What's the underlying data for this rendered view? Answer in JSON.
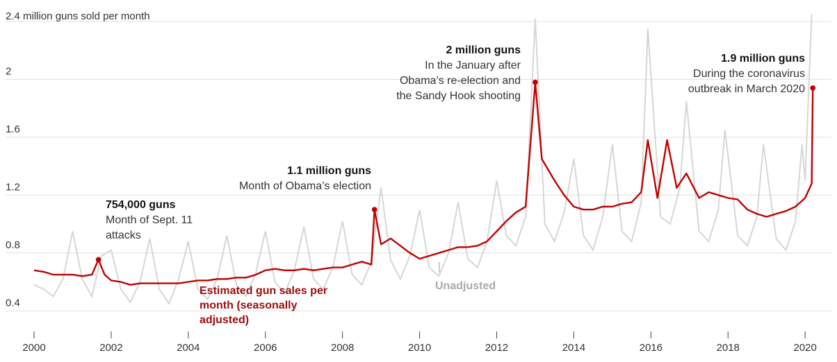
{
  "chart_data": {
    "type": "line",
    "x_range": [
      2000.0,
      2020.25
    ],
    "y_range": [
      0.2,
      2.5
    ],
    "ylabel": "2.4 million guns sold per month",
    "yticks": [
      {
        "value": 0.4,
        "label": "0.4"
      },
      {
        "value": 0.8,
        "label": "0.8"
      },
      {
        "value": 1.2,
        "label": "1.2"
      },
      {
        "value": 1.6,
        "label": "1.6"
      },
      {
        "value": 2.0,
        "label": "2"
      },
      {
        "value": 2.4,
        "label": ""
      }
    ],
    "xticks": [
      {
        "value": 2000,
        "label": "2000"
      },
      {
        "value": 2002,
        "label": "2002"
      },
      {
        "value": 2004,
        "label": "2004"
      },
      {
        "value": 2006,
        "label": "2006"
      },
      {
        "value": 2008,
        "label": "2008"
      },
      {
        "value": 2010,
        "label": "2010"
      },
      {
        "value": 2012,
        "label": "2012"
      },
      {
        "value": 2014,
        "label": "2014"
      },
      {
        "value": 2016,
        "label": "2016"
      },
      {
        "value": 2018,
        "label": "2018"
      },
      {
        "value": 2020,
        "label": "2020"
      }
    ],
    "colors": {
      "adjusted": "#c00000",
      "unadjusted": "#d6d6d6",
      "adjusted_label": "#9b0d0d",
      "unadjusted_label": "#aaaaaa",
      "grid": "#e0e0e0"
    },
    "series": [
      {
        "name": "Estimated gun sales per month (seasonally adjusted)",
        "key": "adjusted",
        "points": [
          [
            2000.0,
            0.68
          ],
          [
            2000.25,
            0.67
          ],
          [
            2000.5,
            0.65
          ],
          [
            2000.75,
            0.65
          ],
          [
            2001.0,
            0.65
          ],
          [
            2001.25,
            0.64
          ],
          [
            2001.5,
            0.65
          ],
          [
            2001.67,
            0.754
          ],
          [
            2001.83,
            0.65
          ],
          [
            2002.0,
            0.61
          ],
          [
            2002.25,
            0.6
          ],
          [
            2002.5,
            0.58
          ],
          [
            2002.75,
            0.59
          ],
          [
            2003.0,
            0.59
          ],
          [
            2003.25,
            0.59
          ],
          [
            2003.5,
            0.59
          ],
          [
            2003.75,
            0.59
          ],
          [
            2004.0,
            0.6
          ],
          [
            2004.25,
            0.61
          ],
          [
            2004.5,
            0.61
          ],
          [
            2004.75,
            0.62
          ],
          [
            2005.0,
            0.62
          ],
          [
            2005.25,
            0.63
          ],
          [
            2005.5,
            0.63
          ],
          [
            2005.75,
            0.65
          ],
          [
            2006.0,
            0.68
          ],
          [
            2006.25,
            0.69
          ],
          [
            2006.5,
            0.68
          ],
          [
            2006.75,
            0.68
          ],
          [
            2007.0,
            0.69
          ],
          [
            2007.25,
            0.68
          ],
          [
            2007.5,
            0.69
          ],
          [
            2007.75,
            0.7
          ],
          [
            2008.0,
            0.7
          ],
          [
            2008.25,
            0.72
          ],
          [
            2008.5,
            0.74
          ],
          [
            2008.75,
            0.72
          ],
          [
            2008.83,
            1.1
          ],
          [
            2009.0,
            0.86
          ],
          [
            2009.25,
            0.9
          ],
          [
            2009.5,
            0.85
          ],
          [
            2009.75,
            0.8
          ],
          [
            2010.0,
            0.76
          ],
          [
            2010.25,
            0.78
          ],
          [
            2010.5,
            0.8
          ],
          [
            2010.75,
            0.82
          ],
          [
            2011.0,
            0.84
          ],
          [
            2011.25,
            0.84
          ],
          [
            2011.5,
            0.85
          ],
          [
            2011.75,
            0.88
          ],
          [
            2012.0,
            0.95
          ],
          [
            2012.25,
            1.02
          ],
          [
            2012.5,
            1.08
          ],
          [
            2012.75,
            1.12
          ],
          [
            2013.0,
            1.98
          ],
          [
            2013.17,
            1.45
          ],
          [
            2013.5,
            1.3
          ],
          [
            2013.75,
            1.2
          ],
          [
            2014.0,
            1.12
          ],
          [
            2014.25,
            1.1
          ],
          [
            2014.5,
            1.1
          ],
          [
            2014.75,
            1.12
          ],
          [
            2015.0,
            1.12
          ],
          [
            2015.25,
            1.14
          ],
          [
            2015.5,
            1.15
          ],
          [
            2015.75,
            1.22
          ],
          [
            2015.92,
            1.58
          ],
          [
            2016.17,
            1.18
          ],
          [
            2016.42,
            1.58
          ],
          [
            2016.67,
            1.25
          ],
          [
            2016.92,
            1.35
          ],
          [
            2017.25,
            1.18
          ],
          [
            2017.5,
            1.22
          ],
          [
            2017.75,
            1.2
          ],
          [
            2018.0,
            1.18
          ],
          [
            2018.25,
            1.17
          ],
          [
            2018.5,
            1.1
          ],
          [
            2018.75,
            1.07
          ],
          [
            2019.0,
            1.05
          ],
          [
            2019.25,
            1.07
          ],
          [
            2019.5,
            1.09
          ],
          [
            2019.75,
            1.12
          ],
          [
            2020.0,
            1.18
          ],
          [
            2020.17,
            1.28
          ],
          [
            2020.2,
            1.94
          ]
        ]
      },
      {
        "name": "Unadjusted",
        "key": "unadjusted",
        "points": [
          [
            2000.0,
            0.58
          ],
          [
            2000.25,
            0.55
          ],
          [
            2000.5,
            0.5
          ],
          [
            2000.75,
            0.62
          ],
          [
            2001.0,
            0.95
          ],
          [
            2001.25,
            0.62
          ],
          [
            2001.5,
            0.5
          ],
          [
            2001.75,
            0.78
          ],
          [
            2002.0,
            0.82
          ],
          [
            2002.25,
            0.55
          ],
          [
            2002.5,
            0.46
          ],
          [
            2002.75,
            0.6
          ],
          [
            2003.0,
            0.9
          ],
          [
            2003.25,
            0.55
          ],
          [
            2003.5,
            0.45
          ],
          [
            2003.75,
            0.62
          ],
          [
            2004.0,
            0.88
          ],
          [
            2004.25,
            0.55
          ],
          [
            2004.5,
            0.48
          ],
          [
            2004.75,
            0.62
          ],
          [
            2005.0,
            0.92
          ],
          [
            2005.25,
            0.58
          ],
          [
            2005.5,
            0.5
          ],
          [
            2005.75,
            0.66
          ],
          [
            2006.0,
            0.95
          ],
          [
            2006.25,
            0.6
          ],
          [
            2006.5,
            0.52
          ],
          [
            2006.75,
            0.68
          ],
          [
            2007.0,
            0.98
          ],
          [
            2007.25,
            0.62
          ],
          [
            2007.5,
            0.55
          ],
          [
            2007.75,
            0.7
          ],
          [
            2008.0,
            1.02
          ],
          [
            2008.25,
            0.65
          ],
          [
            2008.5,
            0.58
          ],
          [
            2008.75,
            0.74
          ],
          [
            2009.0,
            1.25
          ],
          [
            2009.25,
            0.75
          ],
          [
            2009.5,
            0.62
          ],
          [
            2009.75,
            0.78
          ],
          [
            2010.0,
            1.1
          ],
          [
            2010.25,
            0.7
          ],
          [
            2010.5,
            0.64
          ],
          [
            2010.75,
            0.8
          ],
          [
            2011.0,
            1.15
          ],
          [
            2011.25,
            0.76
          ],
          [
            2011.5,
            0.7
          ],
          [
            2011.75,
            0.88
          ],
          [
            2012.0,
            1.3
          ],
          [
            2012.25,
            0.92
          ],
          [
            2012.5,
            0.85
          ],
          [
            2012.75,
            1.05
          ],
          [
            2013.0,
            2.42
          ],
          [
            2013.25,
            1.0
          ],
          [
            2013.5,
            0.88
          ],
          [
            2013.75,
            1.08
          ],
          [
            2014.0,
            1.45
          ],
          [
            2014.25,
            0.92
          ],
          [
            2014.5,
            0.82
          ],
          [
            2014.75,
            1.05
          ],
          [
            2015.0,
            1.55
          ],
          [
            2015.25,
            0.95
          ],
          [
            2015.5,
            0.88
          ],
          [
            2015.75,
            1.15
          ],
          [
            2015.92,
            2.35
          ],
          [
            2016.25,
            1.05
          ],
          [
            2016.5,
            1.0
          ],
          [
            2016.75,
            1.25
          ],
          [
            2016.92,
            1.85
          ],
          [
            2017.25,
            0.95
          ],
          [
            2017.5,
            0.88
          ],
          [
            2017.75,
            1.1
          ],
          [
            2017.92,
            1.65
          ],
          [
            2018.25,
            0.92
          ],
          [
            2018.5,
            0.85
          ],
          [
            2018.75,
            1.05
          ],
          [
            2018.92,
            1.55
          ],
          [
            2019.25,
            0.9
          ],
          [
            2019.5,
            0.82
          ],
          [
            2019.75,
            1.02
          ],
          [
            2019.92,
            1.55
          ],
          [
            2020.0,
            1.3
          ],
          [
            2020.17,
            2.45
          ]
        ]
      }
    ],
    "annotations": [
      {
        "id": "sept11",
        "bold": "754,000 guns",
        "lines": [
          "Month of Sept. 11",
          "attacks"
        ]
      },
      {
        "id": "obama08",
        "bold": "1.1 million guns",
        "lines": [
          "Month of Obama’s election"
        ]
      },
      {
        "id": "jan13",
        "bold": "2 million guns",
        "lines": [
          "In the January after",
          "Obama’s re-election and",
          "the Sandy Hook shooting"
        ]
      },
      {
        "id": "covid",
        "bold": "1.9 million guns",
        "lines": [
          "During the coronavirus",
          "outbreak in March 2020"
        ]
      }
    ],
    "series_labels": {
      "adjusted": [
        "Estimated gun sales per",
        "month (seasonally",
        "adjusted)"
      ],
      "unadjusted": "Unadjusted"
    }
  }
}
